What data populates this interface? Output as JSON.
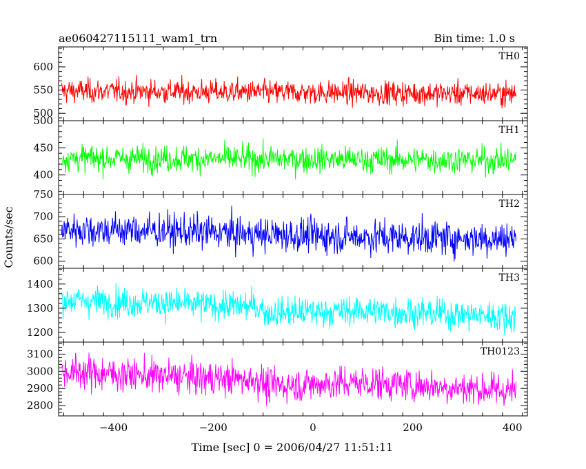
{
  "chart_data": {
    "type": "line",
    "title_left": "ae060427115111_wam1_trn",
    "title_right": "Bin time: 1.0 s",
    "xlabel": "Time [sec] 0 = 2006/04/27 11:51:11",
    "ylabel": "Counts/sec",
    "xlim": [
      -510,
      430
    ],
    "x_ticks": [
      -400,
      -200,
      0,
      200,
      400
    ],
    "x_tick_labels": [
      "−400",
      "−200",
      "0",
      "200",
      "400"
    ],
    "x_data_range": [
      -504,
      407
    ],
    "bin_time_s": 1.0,
    "panels": [
      {
        "label": "TH0",
        "color": "#ff0000",
        "ylim": [
          484,
          643
        ],
        "y_ticks": [
          500,
          550,
          600
        ],
        "y_tick_labels": [
          "500",
          "550",
          "600"
        ],
        "trend": [
          [
            -504,
            548
          ],
          [
            407,
            542
          ]
        ],
        "typical_range": [
          505,
          605
        ]
      },
      {
        "label": "TH1",
        "color": "#00ff00",
        "ylim": [
          364,
          500
        ],
        "y_ticks": [
          400,
          450,
          500
        ],
        "y_tick_labels": [
          "400",
          "450",
          "500"
        ],
        "trend": [
          [
            -504,
            431
          ],
          [
            407,
            427
          ]
        ],
        "typical_range": [
          385,
          480
        ]
      },
      {
        "label": "TH2",
        "color": "#0000ff",
        "ylim": [
          584,
          750
        ],
        "y_ticks": [
          600,
          650,
          700,
          750
        ],
        "y_tick_labels": [
          "600",
          "650",
          "700",
          "750"
        ],
        "trend": [
          [
            -504,
            672
          ],
          [
            -300,
            668
          ],
          [
            -100,
            660
          ],
          [
            100,
            655
          ],
          [
            407,
            650
          ]
        ],
        "typical_range": [
          595,
          745
        ]
      },
      {
        "label": "TH3",
        "color": "#00ffff",
        "ylim": [
          1160,
          1465
        ],
        "y_ticks": [
          1200,
          1300,
          1400
        ],
        "y_tick_labels": [
          "1200",
          "1300",
          "1400"
        ],
        "trend": [
          [
            -504,
            1335
          ],
          [
            -300,
            1320
          ],
          [
            -105,
            1305
          ],
          [
            -95,
            1280
          ],
          [
            100,
            1290
          ],
          [
            407,
            1265
          ]
        ],
        "typical_range": [
          1200,
          1440
        ]
      },
      {
        "label": "TH0123",
        "color": "#ff00ff",
        "ylim": [
          2740,
          3170
        ],
        "y_ticks": [
          2800,
          2900,
          3000,
          3100
        ],
        "y_tick_labels": [
          "2800",
          "2900",
          "3000",
          "3100"
        ],
        "trend": [
          [
            -504,
            3000
          ],
          [
            -300,
            2970
          ],
          [
            -105,
            2950
          ],
          [
            -95,
            2915
          ],
          [
            100,
            2935
          ],
          [
            407,
            2885
          ]
        ],
        "typical_range": [
          2760,
          3140
        ]
      }
    ]
  }
}
